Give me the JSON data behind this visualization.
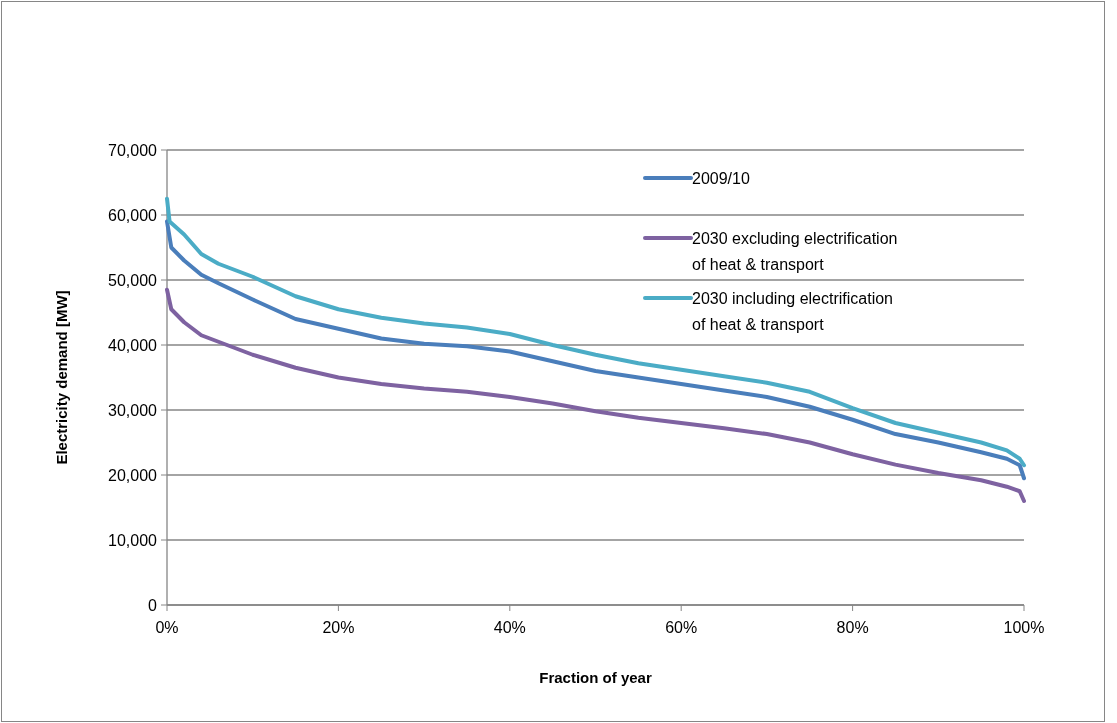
{
  "chart_data": {
    "type": "line",
    "xlabel": "Fraction of year",
    "ylabel": "Electricity demand [MW]",
    "xlim": [
      0,
      100
    ],
    "xticks": [
      {
        "value": 0,
        "label": "0%"
      },
      {
        "value": 20,
        "label": "20%"
      },
      {
        "value": 40,
        "label": "40%"
      },
      {
        "value": 60,
        "label": "60%"
      },
      {
        "value": 80,
        "label": "80%"
      },
      {
        "value": 100,
        "label": "100%"
      }
    ],
    "ylim": [
      0,
      70000
    ],
    "yticks": [
      {
        "value": 0,
        "label": "0"
      },
      {
        "value": 10000,
        "label": "10,000"
      },
      {
        "value": 20000,
        "label": "20,000"
      },
      {
        "value": 30000,
        "label": "30,000"
      },
      {
        "value": 40000,
        "label": "40,000"
      },
      {
        "value": 50000,
        "label": "50,000"
      },
      {
        "value": 60000,
        "label": "60,000"
      },
      {
        "value": 70000,
        "label": "70,000"
      }
    ],
    "grid": "y",
    "legend": "top right",
    "marker": "none",
    "line_style": "solid",
    "series": [
      {
        "name": "2009/10",
        "color": "#4a7ebb",
        "x": [
          0,
          0.5,
          2,
          4,
          6,
          10,
          15,
          20,
          25,
          30,
          35,
          40,
          45,
          50,
          55,
          60,
          65,
          70,
          75,
          80,
          85,
          90,
          95,
          98,
          99.5,
          100
        ],
        "values": [
          59000,
          55000,
          53000,
          50800,
          49500,
          47000,
          44000,
          42500,
          41000,
          40200,
          39800,
          39000,
          37500,
          36000,
          35000,
          34000,
          33000,
          32000,
          30500,
          28500,
          26300,
          25000,
          23500,
          22500,
          21500,
          19500
        ]
      },
      {
        "name": "2030 excluding electrification of heat & transport",
        "color": "#7e62a1",
        "x": [
          0,
          0.5,
          2,
          4,
          6,
          10,
          15,
          20,
          25,
          30,
          35,
          40,
          45,
          50,
          55,
          60,
          65,
          70,
          75,
          80,
          85,
          90,
          95,
          98,
          99.5,
          100
        ],
        "values": [
          48500,
          45500,
          43500,
          41500,
          40500,
          38500,
          36500,
          35000,
          34000,
          33300,
          32800,
          32000,
          31000,
          29800,
          28800,
          28000,
          27200,
          26300,
          25000,
          23200,
          21600,
          20300,
          19200,
          18200,
          17500,
          16000
        ]
      },
      {
        "name": "2030 including electrification of heat & transport",
        "color": "#4bacc6",
        "x": [
          0,
          0.3,
          2,
          4,
          6,
          10,
          15,
          20,
          25,
          30,
          35,
          40,
          45,
          50,
          55,
          60,
          65,
          70,
          75,
          80,
          85,
          90,
          95,
          98,
          99.5,
          100
        ],
        "values": [
          62500,
          59000,
          57000,
          54000,
          52500,
          50500,
          47500,
          45500,
          44200,
          43300,
          42700,
          41700,
          40000,
          38500,
          37200,
          36200,
          35200,
          34200,
          32800,
          30300,
          28000,
          26500,
          25000,
          23800,
          22500,
          21500
        ]
      }
    ]
  }
}
